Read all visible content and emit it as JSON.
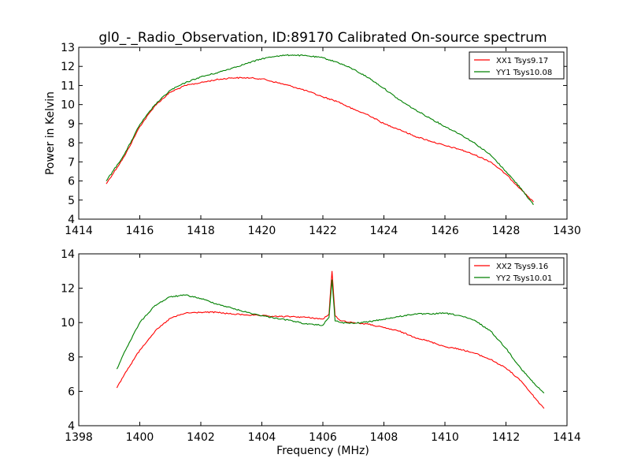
{
  "figure": {
    "title": "gl0_-_Radio_Observation, ID:89170 Calibrated On-source spectrum",
    "xlabel": "Frequency (MHz)",
    "ylabel": "Power in Kelvin"
  },
  "chart_data": [
    {
      "type": "line",
      "title": "gl0_-_Radio_Observation, ID:89170 Calibrated On-source spectrum",
      "xlabel": "",
      "ylabel": "Power in Kelvin",
      "xlim": [
        1414,
        1430
      ],
      "ylim": [
        4,
        13
      ],
      "xticks": [
        1414,
        1416,
        1418,
        1420,
        1422,
        1424,
        1426,
        1428,
        1430
      ],
      "yticks": [
        4,
        5,
        6,
        7,
        8,
        9,
        10,
        11,
        12,
        13
      ],
      "legend_position": "top-right",
      "grid": false,
      "series": [
        {
          "name": "XX1 Tsys9.17",
          "color": "#ff0000",
          "x": [
            1414.9,
            1415.5,
            1416.0,
            1416.5,
            1417.0,
            1417.5,
            1418.0,
            1418.5,
            1419.0,
            1419.5,
            1420.0,
            1420.5,
            1421.0,
            1421.5,
            1422.0,
            1422.5,
            1423.0,
            1423.5,
            1424.0,
            1424.5,
            1425.0,
            1425.5,
            1426.0,
            1426.5,
            1427.0,
            1427.5,
            1428.0,
            1428.5,
            1428.9
          ],
          "y": [
            5.85,
            7.3,
            8.85,
            9.95,
            10.65,
            11.0,
            11.15,
            11.3,
            11.4,
            11.4,
            11.35,
            11.15,
            10.95,
            10.7,
            10.4,
            10.15,
            9.75,
            9.45,
            9.0,
            8.7,
            8.35,
            8.1,
            7.85,
            7.65,
            7.35,
            7.0,
            6.35,
            5.55,
            4.9
          ]
        },
        {
          "name": "YY1 Tsys10.08",
          "color": "#008000",
          "x": [
            1414.9,
            1415.5,
            1416.0,
            1416.5,
            1417.0,
            1417.5,
            1418.0,
            1418.5,
            1419.0,
            1419.5,
            1420.0,
            1420.5,
            1421.0,
            1421.5,
            1422.0,
            1422.5,
            1423.0,
            1423.5,
            1424.0,
            1424.5,
            1425.0,
            1425.5,
            1426.0,
            1426.5,
            1427.0,
            1427.5,
            1428.0,
            1428.5,
            1428.9
          ],
          "y": [
            6.0,
            7.4,
            8.95,
            10.0,
            10.75,
            11.15,
            11.45,
            11.65,
            11.9,
            12.15,
            12.4,
            12.55,
            12.6,
            12.55,
            12.45,
            12.2,
            11.85,
            11.4,
            10.85,
            10.25,
            9.75,
            9.3,
            8.85,
            8.45,
            7.95,
            7.35,
            6.5,
            5.6,
            4.75
          ]
        }
      ]
    },
    {
      "type": "line",
      "title": "",
      "xlabel": "Frequency (MHz)",
      "ylabel": "",
      "xlim": [
        1398,
        1414
      ],
      "ylim": [
        4,
        14
      ],
      "xticks": [
        1398,
        1400,
        1402,
        1404,
        1406,
        1408,
        1410,
        1412,
        1414
      ],
      "yticks": [
        4,
        6,
        8,
        10,
        12,
        14
      ],
      "legend_position": "top-right",
      "grid": false,
      "series": [
        {
          "name": "XX2 Tsys9.16",
          "color": "#ff0000",
          "x": [
            1399.25,
            1399.5,
            1400.0,
            1400.5,
            1401.0,
            1401.5,
            1402.0,
            1402.5,
            1403.0,
            1403.5,
            1404.0,
            1404.5,
            1405.0,
            1405.5,
            1406.0,
            1406.2,
            1406.3,
            1406.4,
            1406.6,
            1407.0,
            1407.5,
            1408.0,
            1408.5,
            1409.0,
            1409.5,
            1410.0,
            1410.5,
            1411.0,
            1411.5,
            1412.0,
            1412.5,
            1413.0,
            1413.25
          ],
          "y": [
            6.2,
            7.0,
            8.4,
            9.5,
            10.25,
            10.55,
            10.6,
            10.6,
            10.5,
            10.45,
            10.4,
            10.35,
            10.35,
            10.3,
            10.2,
            10.5,
            13.0,
            10.4,
            10.1,
            10.0,
            9.9,
            9.7,
            9.5,
            9.15,
            8.9,
            8.6,
            8.45,
            8.2,
            7.85,
            7.35,
            6.6,
            5.5,
            5.0
          ]
        },
        {
          "name": "YY2 Tsys10.01",
          "color": "#008000",
          "x": [
            1399.25,
            1399.5,
            1400.0,
            1400.5,
            1401.0,
            1401.5,
            1402.0,
            1402.5,
            1403.0,
            1403.5,
            1404.0,
            1404.5,
            1405.0,
            1405.5,
            1406.0,
            1406.2,
            1406.3,
            1406.4,
            1406.6,
            1407.0,
            1407.5,
            1408.0,
            1408.5,
            1409.0,
            1409.5,
            1410.0,
            1410.5,
            1411.0,
            1411.5,
            1412.0,
            1412.5,
            1413.0,
            1413.25
          ],
          "y": [
            7.3,
            8.3,
            10.0,
            11.0,
            11.5,
            11.6,
            11.4,
            11.1,
            10.85,
            10.6,
            10.4,
            10.25,
            10.1,
            9.9,
            9.85,
            10.3,
            12.5,
            10.1,
            10.0,
            9.95,
            10.05,
            10.2,
            10.35,
            10.5,
            10.5,
            10.55,
            10.4,
            10.1,
            9.5,
            8.5,
            7.3,
            6.3,
            5.9
          ]
        }
      ]
    }
  ]
}
